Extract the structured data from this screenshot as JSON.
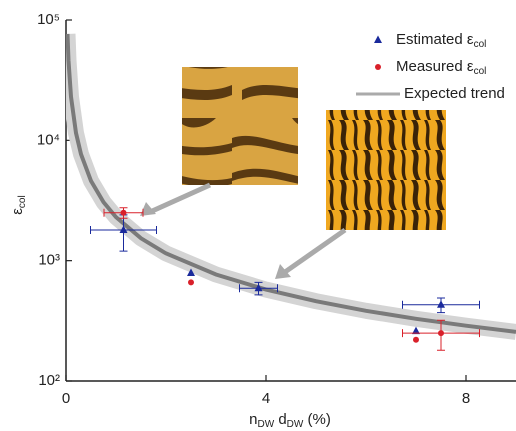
{
  "chart_data": {
    "type": "scatter",
    "y_label": "ε",
    "y_label_sub": "col",
    "x_label_parts": [
      "n",
      "DW",
      " d",
      "DW",
      " (%)"
    ],
    "xlim": [
      0,
      9
    ],
    "xticks": [
      0,
      4,
      8
    ],
    "ylim": [
      100,
      100000
    ],
    "log_y": true,
    "yticks": [
      {
        "value": 100,
        "label": "10²"
      },
      {
        "value": 1000,
        "label": "10³"
      },
      {
        "value": 10000,
        "label": "10⁴"
      },
      {
        "value": 100000,
        "label": "10⁵"
      }
    ],
    "legend": "upper right",
    "series": [
      {
        "name": "Estimated ε",
        "name_sub": "col",
        "color": "#1a2a9c",
        "marker": "triangle",
        "x": [
          1.15,
          2.5,
          3.85,
          7.0,
          7.5
        ],
        "values": [
          1800,
          790,
          590,
          260,
          430
        ],
        "xerr": [
          0.66,
          null,
          0.38,
          null,
          0.77
        ],
        "yerr": [
          600,
          null,
          70,
          null,
          60
        ]
      },
      {
        "name": "Measured ε",
        "name_sub": "col",
        "color": "#d9202a",
        "marker": "circle",
        "x": [
          1.15,
          2.5,
          7.0,
          7.5
        ],
        "values": [
          2500,
          660,
          220,
          250
        ],
        "xerr": [
          0.39,
          null,
          null,
          0.77
        ],
        "yerr": [
          250,
          null,
          null,
          70
        ]
      },
      {
        "name": "Expected trend",
        "color": "#7a7a7a",
        "marker": "line",
        "x": [
          0.03,
          0.05,
          0.1,
          0.2,
          0.3,
          0.5,
          0.75,
          1,
          1.5,
          2,
          3,
          4,
          5,
          6,
          7,
          8,
          9
        ],
        "values": [
          76667,
          46000,
          23000,
          11500,
          7667,
          4600,
          3067,
          2300,
          1533,
          1150,
          767,
          575,
          460,
          383,
          329,
          288,
          256
        ]
      }
    ]
  }
}
